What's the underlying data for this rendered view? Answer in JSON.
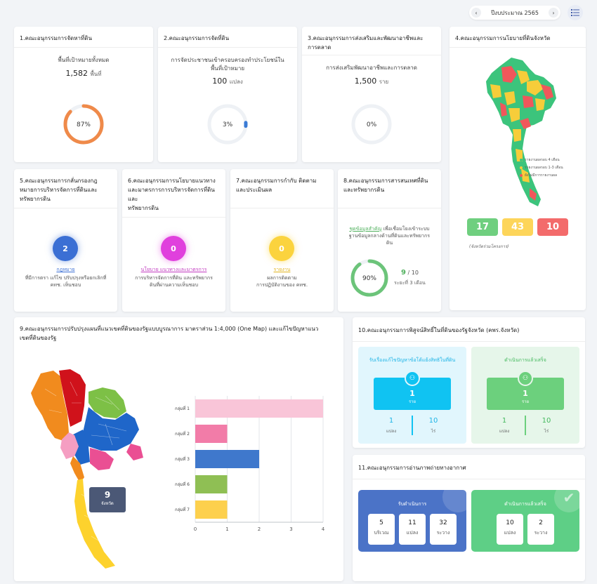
{
  "header": {
    "year_label": "ปีงบประมาณ 2565"
  },
  "card1": {
    "title": "1.คณะอนุกรรมการจัดหาที่ดิน",
    "subtitle": "พื้นที่เป้าหมายทั้งหมด",
    "value": "1,582",
    "unit": "พื้นที่",
    "percent_label": "87%",
    "progress": 0.87,
    "color": "#ef8a4a"
  },
  "card2": {
    "title": "2.คณะอนุกรรมการจัดที่ดิน",
    "subtitle_line1": "การจัดประชาชนเข้าครอบครองทำประโยชน์ใน",
    "subtitle_line2": "พื้นที่เป้าหมาย",
    "value": "100",
    "unit": "แปลง",
    "percent_label": "3%",
    "progress": 0.03,
    "color": "#3a7bd5"
  },
  "card3": {
    "title_line1": "3.คณะอนุกรรมการส่งเสริมและพัฒนาอาชีพและ",
    "title_line2": "การตลาด",
    "subtitle": "การส่งเสริมพัฒนาอาชีพและการตลาด",
    "value": "1,500",
    "unit": "ราย",
    "percent_label": "0%",
    "progress": 0
  },
  "card4": {
    "title": "4.คณะอนุกรรมการนโยบายที่ดินจังหวัด",
    "legend": [
      {
        "label": "รายงานผลรอบ 4 เดือน",
        "color": "#3cc47c"
      },
      {
        "label": "รายงานผลรอบ 1-3 เดือน",
        "color": "#f6cd3a"
      },
      {
        "label": "ยังไม่มีการรายงานผล",
        "color": "#f0575b"
      }
    ],
    "stats": [
      {
        "value": "17",
        "color": "#6fcf7f"
      },
      {
        "value": "43",
        "color": "#fdd55a"
      },
      {
        "value": "10",
        "color": "#f36b6b"
      }
    ],
    "note": "(จังหวัดร่วมโครงการ)"
  },
  "card5": {
    "title_line1": "5.คณะอนุกรรมการกลั่นกรองกฎ",
    "title_line2": "หมายการบริหารจัดการที่ดินและ",
    "title_line3": "ทรัพยากรดิน",
    "count": "2",
    "color": "#3b6fd4",
    "link": "กฎหมาย",
    "desc_line1": "ที่มีการตรา แก้ไข ปรับปรุงหรือยกเลิกที่",
    "desc_line2": "คทช. เห็นชอบ"
  },
  "card6": {
    "title_line1": "6.คณะอนุกรรมการนโยบายแนวทาง",
    "title_line2": "และมาตรการการบริหารจัดการที่ดินและ",
    "title_line3": "ทรัพยากรดิน",
    "count": "0",
    "color": "#e040dd",
    "link": "นโยบาย แนวทางและมาตรการ",
    "desc_line1": "การบริหารจัดการที่ดิน และทรัพยากร",
    "desc_line2": "ดินที่ผ่านความเห็นชอบ"
  },
  "card7": {
    "title_line1": "7.คณะอนุกรรมการกำกับ ติดตาม",
    "title_line2": "และประเมินผล",
    "count": "0",
    "color": "#fbd33e",
    "link": "รายงาน",
    "desc_line1": "ผลการติดตาม",
    "desc_line2": "การปฏิบัติงานของ คทช."
  },
  "card8": {
    "title_line1": "8.คณะอนุกรรมการสารสนเทศที่ดิน",
    "title_line2": "และทรัพยากรดิน",
    "link": "ชุดข้อมูลสำคัญ",
    "desc_line1": "เพื่อเชื่อมโยงเข้าระบบ",
    "desc_line2": "ฐานข้อมูลกลางด้านที่ดินและทรัพยากร",
    "desc_line3": "ดิน",
    "percent_label": "90%",
    "progress": 0.9,
    "color": "#6cc47a",
    "done": "9",
    "total": "/ 10",
    "period": "ระยะที่ 3 เดือน"
  },
  "card9": {
    "title_line1": "9.คณะอนุกรรมการปรับปรุงแผนที่แนวเขตที่ดินของรัฐแบบบูรณาการ มาตราส่วน 1:4,000 (One Map) และแก้ไขปัญหาแนว",
    "title_line2": "เขตที่ดินของรัฐ",
    "map_badge_value": "9",
    "map_badge_label": "จังหวัด"
  },
  "chart_data": {
    "type": "bar",
    "orientation": "horizontal",
    "categories": [
      "กลุ่มที่ 1",
      "กลุ่มที่ 2",
      "กลุ่มที่ 3",
      "กลุ่มที่ 6",
      "กลุ่มที่ 7"
    ],
    "values": [
      4,
      1,
      2,
      1,
      1
    ],
    "colors": [
      "#f9c5d8",
      "#f27ca8",
      "#3f78cc",
      "#8fbf54",
      "#fdd04d"
    ],
    "xticks": [
      "0",
      "1",
      "2",
      "3",
      "4"
    ],
    "xlim": [
      0,
      4
    ],
    "grid": true
  },
  "card10": {
    "title": "10.คณะอนุกรรมการพิสูจน์สิทธิ์ในที่ดินของรัฐจังหวัด (คพร.จังหวัด)",
    "left": {
      "heading": "รับเรื่องแก้ไขปัญหาข้อโต้แย้งสิทธิในที่ดิน",
      "value": "1",
      "unit": "ราย",
      "a": "1",
      "a_unit": "แปลง",
      "b": "10",
      "b_unit": "ไร่"
    },
    "right": {
      "heading": "ดำเนินการแล้วเสร็จ",
      "value": "1",
      "unit": "ราย",
      "a": "1",
      "a_unit": "แปลง",
      "b": "10",
      "b_unit": "ไร่"
    }
  },
  "card11": {
    "title": "11.คณะอนุกรรมการอ่านภาพถ่ายทางอากาศ",
    "left": {
      "heading": "รับดำเนินการ",
      "items": [
        {
          "value": "5",
          "unit": "บริเวณ"
        },
        {
          "value": "11",
          "unit": "แปลง"
        },
        {
          "value": "32",
          "unit": "ระวาง"
        }
      ]
    },
    "right": {
      "heading": "ดำเนินการแล้วเสร็จ",
      "items": [
        {
          "value": "10",
          "unit": "แปลง"
        },
        {
          "value": "2",
          "unit": "ระวาง"
        }
      ]
    }
  }
}
